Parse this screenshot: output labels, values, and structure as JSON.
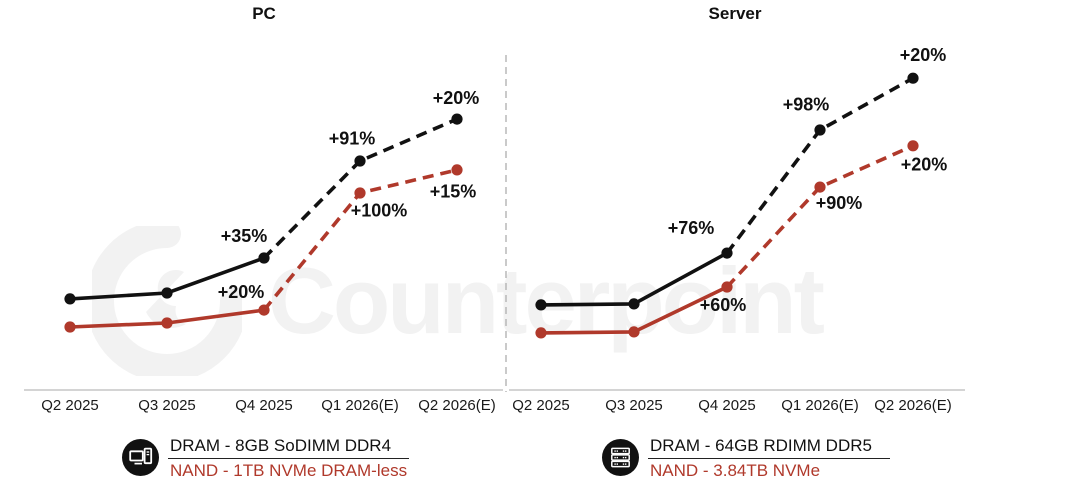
{
  "watermark": {
    "text": "Counterpoint"
  },
  "colors": {
    "dram_line": "#111111",
    "nand_line": "#B0392B",
    "annotation": "#111111",
    "axis": "#c6c6c6",
    "divider": "#b3b3b3",
    "watermark": "#f2f2f2",
    "legend_icon_bg": "#111111"
  },
  "chart_data": [
    {
      "type": "line",
      "title": "PC",
      "categories": [
        "Q2 2025",
        "Q3 2025",
        "Q4 2025",
        "Q1 2026(E)",
        "Q2 2026(E)"
      ],
      "legend_position": "bottom",
      "grid": false,
      "y_axis": "hidden (relative price level, 0 = baseline, 100 = plot top, estimated from pixels)",
      "dashed_from_category": "Q4 2025",
      "series": [
        {
          "name": "DRAM - 8GB SoDIMM DDR4",
          "color": "#111111",
          "levels": [
            27.6,
            29.4,
            40.0,
            69.4,
            82.1
          ],
          "qoq_change_labels": [
            null,
            null,
            "+35%",
            "+91%",
            "+20%"
          ]
        },
        {
          "name": "NAND - 1TB NVMe DRAM-less",
          "color": "#B0392B",
          "levels": [
            19.1,
            20.3,
            24.2,
            59.7,
            66.7
          ],
          "qoq_change_labels": [
            null,
            null,
            "+20%",
            "+100%",
            "+15%"
          ]
        }
      ]
    },
    {
      "type": "line",
      "title": "Server",
      "categories": [
        "Q2 2025",
        "Q3 2025",
        "Q4 2025",
        "Q1 2026(E)",
        "Q2 2026(E)"
      ],
      "legend_position": "bottom",
      "grid": false,
      "y_axis": "hidden (relative price level, 0 = baseline, 100 = plot top, estimated from pixels)",
      "dashed_from_category": "Q4 2025",
      "series": [
        {
          "name": "DRAM - 64GB RDIMM DDR5",
          "color": "#111111",
          "levels": [
            25.8,
            26.1,
            41.5,
            78.8,
            94.5
          ],
          "qoq_change_labels": [
            null,
            null,
            "+76%",
            "+98%",
            "+20%"
          ]
        },
        {
          "name": "NAND - 3.84TB NVMe",
          "color": "#B0392B",
          "levels": [
            17.3,
            17.6,
            31.2,
            61.5,
            74.0
          ],
          "qoq_change_labels": [
            null,
            null,
            "+60%",
            "+90%",
            "+20%"
          ]
        }
      ]
    }
  ]
}
